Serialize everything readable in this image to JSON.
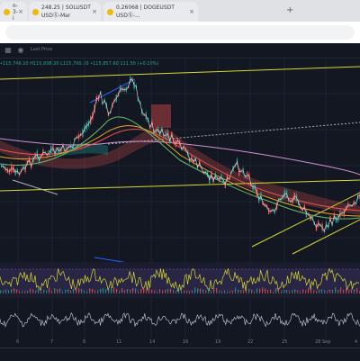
{
  "browser": {
    "tabs": [
      {
        "label": "o-3-i",
        "icon_color": "#f0b90b",
        "close": "×"
      },
      {
        "label": "248.25 | SOLUSDT USDⓈ-Mar",
        "icon_color": "#f0b90b",
        "close": "×"
      },
      {
        "label": "0.26068 | DOGEUSDT USDⓈ-...",
        "icon_color": "#f0b90b",
        "close": "×"
      },
      {
        "label": "",
        "icon_color": "#dfe1e5",
        "close": ""
      }
    ],
    "new_tab": "+"
  },
  "toolbar": {
    "last_price_label": "Last Price",
    "icons": [
      "grid-icon",
      "eye-icon"
    ]
  },
  "chart": {
    "ohlc_text": "•115,746.10  H115,938.20  L115,700.30  •115,857.60  111.50 (+0.10%)",
    "x_axis_labels": [
      "6",
      "7",
      "8",
      "11",
      "14",
      "16",
      "19",
      "22",
      "25",
      "28",
      "Sep",
      "4"
    ],
    "colors": {
      "background": "#131722",
      "up": "#26a69a",
      "down": "#ef5350",
      "trendline": "#d8d833",
      "blue_line": "#2962ff",
      "rsi": "#d8d833",
      "lower": "#c9d1e0"
    }
  }
}
